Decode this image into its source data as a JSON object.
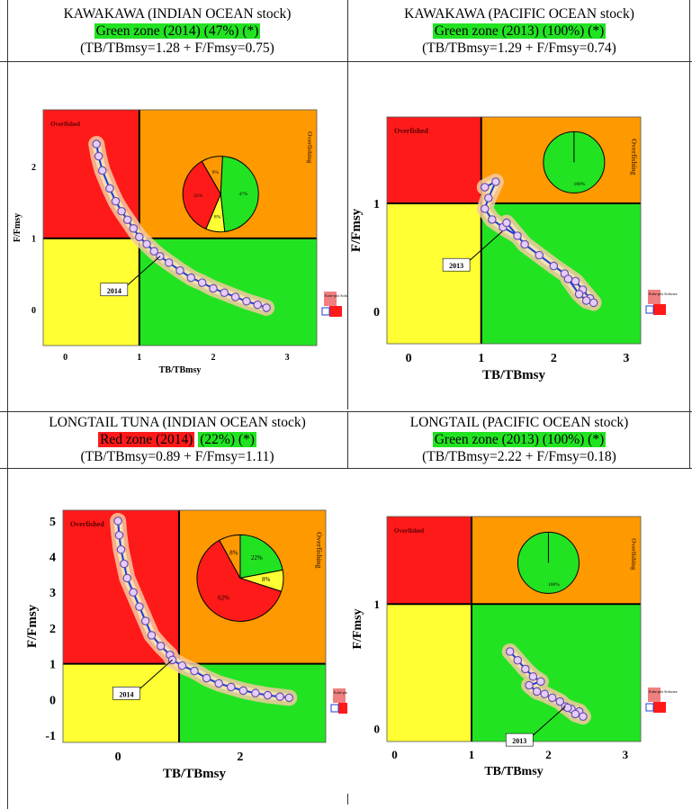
{
  "panels": [
    {
      "id": "tl",
      "title": "KAWAKAWA (INDIAN OCEAN stock)",
      "status_zone": "Green zone (2014) (47%) (*)",
      "status_zone_part1": "",
      "status_zone_part2": "",
      "ratio_text": "(TB/TBmsy=1.28 + F/Fmsy=0.75)",
      "zone_color": "#22e322"
    },
    {
      "id": "tr",
      "title": "KAWAKAWA (PACIFIC OCEAN stock)",
      "status_zone": "Green zone (2013) (100%) (*)",
      "ratio_text": "(TB/TBmsy=1.29 + F/Fmsy=0.74)",
      "zone_color": "#22e322"
    },
    {
      "id": "bl",
      "title": "LONGTAIL TUNA (INDIAN OCEAN stock)",
      "status_zone_red": "Red zone (2014)",
      "status_zone_rest": "(22%) (*)",
      "ratio_text": "(TB/TBmsy=0.89 + F/Fmsy=1.11)",
      "zone_color": "#ff1a1a"
    },
    {
      "id": "br",
      "title": "LONGTAIL (PACIFIC OCEAN stock)",
      "status_zone": "Green zone (2013) (100%) (*)",
      "ratio_text": "(TB/TBmsy=2.22 + F/Fmsy=0.18)",
      "zone_color": "#22e322"
    }
  ],
  "chart_data": [
    {
      "type": "scatter",
      "xlabel": "TB/TBmsy",
      "ylabel": "F/Fmsy",
      "xlim": [
        -0.3,
        3.4
      ],
      "ylim": [
        -0.5,
        2.8
      ],
      "xticks": [
        0,
        1,
        2,
        3
      ],
      "yticks": [
        0,
        1,
        2
      ],
      "quadrant_labels": [
        "Overfished",
        "Overfishing"
      ],
      "final_year_label": "2014",
      "final_point": [
        1.28,
        0.75
      ],
      "trajectory": [
        [
          0.42,
          2.32
        ],
        [
          0.45,
          2.15
        ],
        [
          0.5,
          1.95
        ],
        [
          0.6,
          1.7
        ],
        [
          0.68,
          1.52
        ],
        [
          0.76,
          1.38
        ],
        [
          0.84,
          1.26
        ],
        [
          0.92,
          1.14
        ],
        [
          1.0,
          1.02
        ],
        [
          1.1,
          0.92
        ],
        [
          1.2,
          0.82
        ],
        [
          1.28,
          0.75
        ],
        [
          1.4,
          0.66
        ],
        [
          1.55,
          0.55
        ],
        [
          1.7,
          0.45
        ],
        [
          1.85,
          0.38
        ],
        [
          2.0,
          0.3
        ],
        [
          2.15,
          0.24
        ],
        [
          2.3,
          0.18
        ],
        [
          2.45,
          0.12
        ],
        [
          2.6,
          0.07
        ],
        [
          2.72,
          0.03
        ]
      ],
      "pie": [
        {
          "label": "47%",
          "value": 47,
          "color": "#22e322"
        },
        {
          "label": "8%",
          "value": 8,
          "color": "#ffff33"
        },
        {
          "label": "35%",
          "value": 35,
          "color": "#ff1a1a"
        },
        {
          "label": "9%",
          "value": 9,
          "color": "#ff9900"
        }
      ],
      "pie_center": [
        2.1,
        1.62
      ],
      "legend_text": "Kobe-plot Software"
    },
    {
      "type": "scatter",
      "xlabel": "TB/TBmsy",
      "ylabel": "F/Fmsy",
      "xlim": [
        -0.3,
        3.2
      ],
      "ylim": [
        -0.3,
        1.8
      ],
      "xticks": [
        0,
        1,
        2,
        3
      ],
      "yticks": [
        0,
        1
      ],
      "quadrant_labels": [
        "Overfished",
        "Overfishing"
      ],
      "final_year_label": "2013",
      "final_point": [
        1.29,
        0.74
      ],
      "trajectory": [
        [
          1.05,
          1.15
        ],
        [
          1.2,
          1.2
        ],
        [
          1.1,
          1.05
        ],
        [
          1.05,
          0.95
        ],
        [
          1.15,
          0.85
        ],
        [
          1.3,
          0.78
        ],
        [
          1.5,
          0.7
        ],
        [
          1.35,
          0.82
        ],
        [
          1.6,
          0.62
        ],
        [
          1.8,
          0.52
        ],
        [
          2.0,
          0.42
        ],
        [
          2.15,
          0.35
        ],
        [
          2.3,
          0.28
        ],
        [
          2.4,
          0.2
        ],
        [
          2.5,
          0.12
        ],
        [
          2.55,
          0.08
        ],
        [
          2.45,
          0.1
        ],
        [
          2.35,
          0.16
        ],
        [
          2.2,
          0.3
        ]
      ],
      "pie": [
        {
          "label": "100%",
          "value": 100,
          "color": "#22e322"
        }
      ],
      "pie_center": [
        2.28,
        1.38
      ],
      "legend_text": "Kobe-plot Software"
    },
    {
      "type": "scatter",
      "xlabel": "TB/TBmsy",
      "ylabel": "F/Fmsy",
      "xlim": [
        -0.9,
        3.4
      ],
      "ylim": [
        -1.2,
        5.3
      ],
      "xticks": [
        0,
        2
      ],
      "yticks": [
        -1,
        0,
        1,
        2,
        3,
        4,
        5
      ],
      "quadrant_labels": [
        "Overfished",
        "Overfishing"
      ],
      "final_year_label": "2014",
      "final_point": [
        0.89,
        1.11
      ],
      "trajectory": [
        [
          0,
          5.0
        ],
        [
          0.02,
          4.6
        ],
        [
          0.05,
          4.2
        ],
        [
          0.1,
          3.8
        ],
        [
          0.15,
          3.4
        ],
        [
          0.25,
          3.0
        ],
        [
          0.35,
          2.6
        ],
        [
          0.45,
          2.2
        ],
        [
          0.55,
          1.8
        ],
        [
          0.7,
          1.5
        ],
        [
          0.85,
          1.25
        ],
        [
          0.89,
          1.11
        ],
        [
          1.05,
          0.95
        ],
        [
          1.25,
          0.8
        ],
        [
          1.45,
          0.6
        ],
        [
          1.65,
          0.45
        ],
        [
          1.85,
          0.35
        ],
        [
          2.05,
          0.25
        ],
        [
          2.25,
          0.18
        ],
        [
          2.45,
          0.12
        ],
        [
          2.65,
          0.08
        ],
        [
          2.8,
          0.05
        ]
      ],
      "pie": [
        {
          "label": "22%",
          "value": 22,
          "color": "#22e322"
        },
        {
          "label": "8%",
          "value": 8,
          "color": "#ffff33"
        },
        {
          "label": "62%",
          "value": 62,
          "color": "#ff1a1a"
        },
        {
          "label": "8%",
          "value": 8,
          "color": "#ff9900"
        }
      ],
      "pie_center": [
        2.0,
        3.4
      ],
      "legend_text": "Kobe-plot Software"
    },
    {
      "type": "scatter",
      "xlabel": "TB/TBmsy",
      "ylabel": "F/Fmsy",
      "xlim": [
        -0.1,
        3.2
      ],
      "ylim": [
        -0.1,
        1.7
      ],
      "xticks": [
        0,
        1,
        2,
        3
      ],
      "yticks": [
        0,
        1
      ],
      "quadrant_labels": [
        "Overfished",
        "Overfishing"
      ],
      "final_year_label": "2013",
      "final_point": [
        2.22,
        0.18
      ],
      "trajectory": [
        [
          1.5,
          0.62
        ],
        [
          1.6,
          0.55
        ],
        [
          1.7,
          0.48
        ],
        [
          1.8,
          0.42
        ],
        [
          1.9,
          0.38
        ],
        [
          1.75,
          0.35
        ],
        [
          1.85,
          0.3
        ],
        [
          1.95,
          0.28
        ],
        [
          2.05,
          0.25
        ],
        [
          2.15,
          0.22
        ],
        [
          2.22,
          0.18
        ],
        [
          2.3,
          0.16
        ],
        [
          2.4,
          0.14
        ],
        [
          2.45,
          0.1
        ],
        [
          2.35,
          0.12
        ],
        [
          2.25,
          0.17
        ]
      ],
      "pie": [
        {
          "label": "100%",
          "value": 100,
          "color": "#22e322"
        }
      ],
      "pie_center": [
        2.0,
        1.33
      ],
      "legend_text": "Kobe-plot Software"
    }
  ],
  "colors": {
    "red": "#ff1a1a",
    "orange": "#ff9900",
    "yellow": "#ffff33",
    "green": "#22e322",
    "trajectory": "#1a3fd8",
    "point_fill": "#e6ccff",
    "point_stroke": "#6a4fa8",
    "ellipse_fill": "#f4c9a0"
  }
}
